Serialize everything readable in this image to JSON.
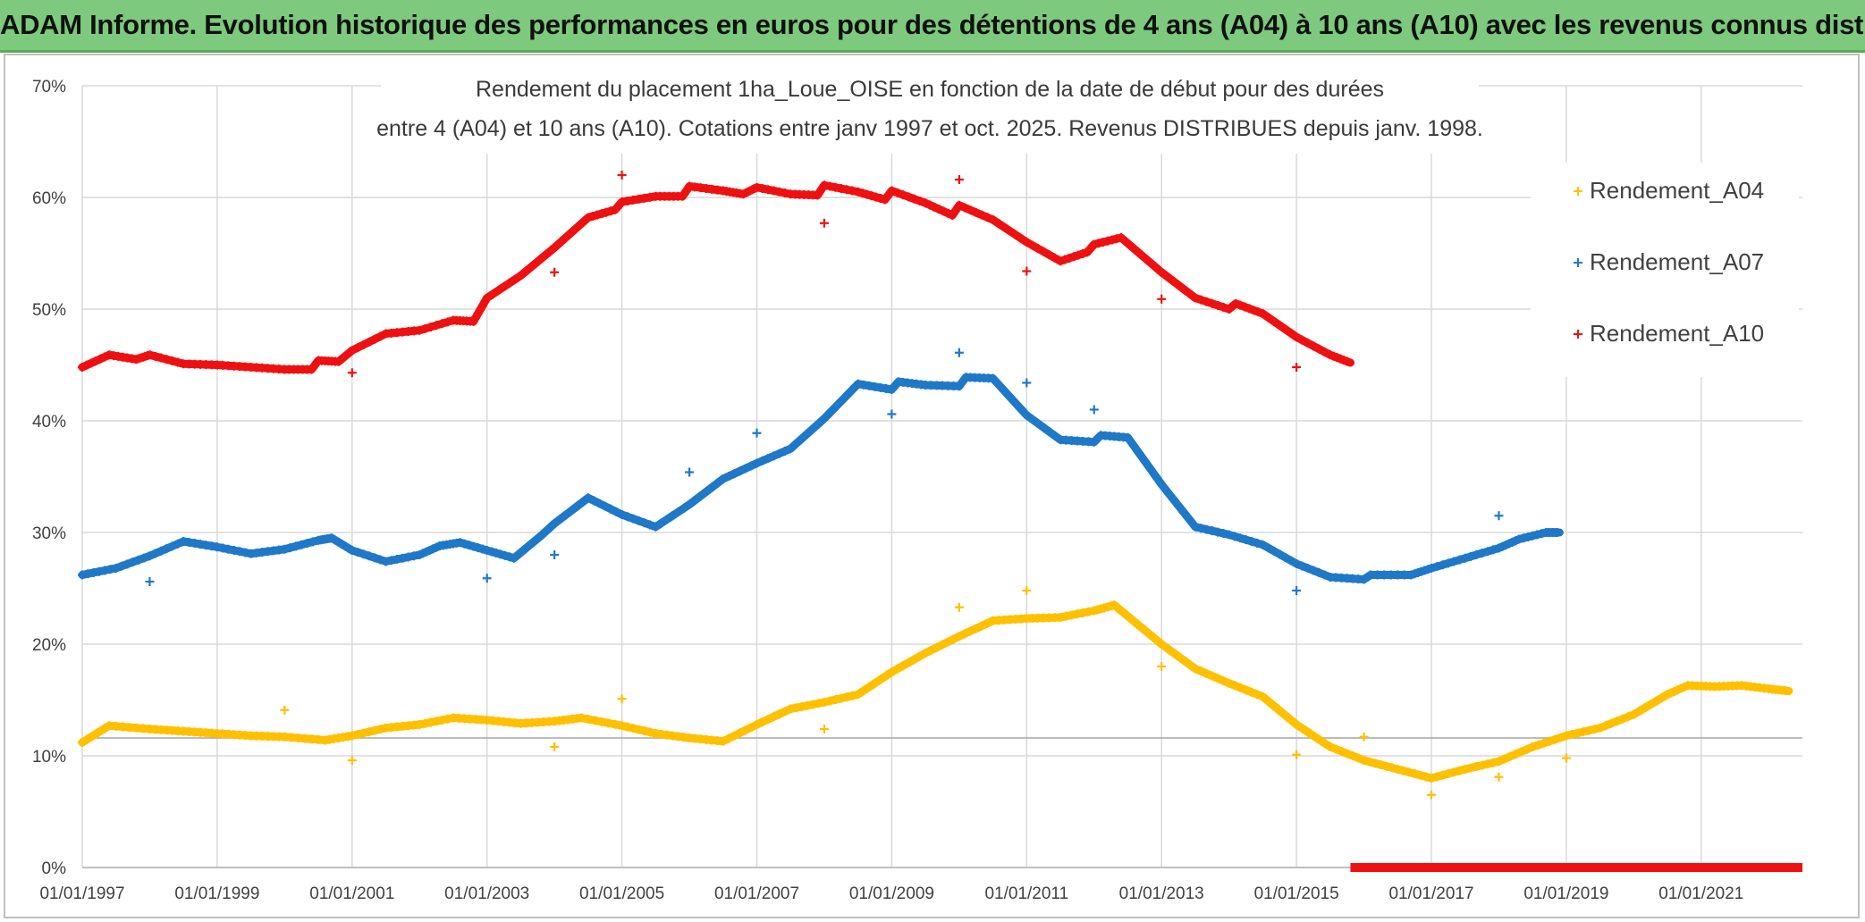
{
  "header": {
    "title": "ADAM Informe. Evolution historique des performances en euros pour des détentions de 4 ans (A04) à 10 ans (A10) avec les revenus connus distribués"
  },
  "colors": {
    "A04": "#ffc000",
    "A07": "#1f78c8",
    "A10": "#ee1111",
    "grid": "#d9d9d9",
    "banner": "#7dc97d"
  },
  "chart_data": {
    "type": "scatter",
    "title_line1": "Rendement du placement 1ha_Loue_OISE en fonction de la date de début pour des durées",
    "title_line2": "entre 4 (A04) et 10 ans (A10). Cotations entre janv 1997 et oct. 2025. Revenus DISTRIBUES depuis janv. 1998.",
    "xlabel": "",
    "ylabel": "",
    "x_range": [
      1997.0,
      2022.5
    ],
    "ylim": [
      0,
      0.7
    ],
    "y_ticks": [
      0,
      0.1,
      0.2,
      0.3,
      0.4,
      0.5,
      0.6,
      0.7
    ],
    "y_tick_labels": [
      "0%",
      "10%",
      "20%",
      "30%",
      "40%",
      "50%",
      "60%",
      "70%"
    ],
    "x_ticks": [
      1997,
      1999,
      2001,
      2003,
      2005,
      2007,
      2009,
      2011,
      2013,
      2015,
      2017,
      2019,
      2021
    ],
    "x_tick_labels": [
      "01/01/1997",
      "01/01/1999",
      "01/01/2001",
      "01/01/2003",
      "01/01/2005",
      "01/01/2007",
      "01/01/2009",
      "01/01/2011",
      "01/01/2013",
      "01/01/2015",
      "01/01/2017",
      "01/01/2019",
      "01/01/2021"
    ],
    "grid": true,
    "legend_position": "right",
    "series": [
      {
        "name": "Rendement_A04",
        "key": "A04",
        "points": [
          [
            1997.0,
            0.112
          ],
          [
            1997.4,
            0.127
          ],
          [
            1998.0,
            0.124
          ],
          [
            1998.5,
            0.122
          ],
          [
            1999.0,
            0.12
          ],
          [
            1999.5,
            0.118
          ],
          [
            2000.0,
            0.117
          ],
          [
            2000.6,
            0.114
          ],
          [
            2001.0,
            0.118
          ],
          [
            2001.5,
            0.125
          ],
          [
            2002.0,
            0.128
          ],
          [
            2002.5,
            0.134
          ],
          [
            2003.0,
            0.132
          ],
          [
            2003.5,
            0.129
          ],
          [
            2004.0,
            0.131
          ],
          [
            2004.4,
            0.134
          ],
          [
            2005.0,
            0.127
          ],
          [
            2005.5,
            0.12
          ],
          [
            2006.0,
            0.116
          ],
          [
            2006.5,
            0.113
          ],
          [
            2007.0,
            0.128
          ],
          [
            2007.5,
            0.142
          ],
          [
            2008.0,
            0.148
          ],
          [
            2008.5,
            0.155
          ],
          [
            2009.0,
            0.175
          ],
          [
            2009.5,
            0.192
          ],
          [
            2010.0,
            0.207
          ],
          [
            2010.5,
            0.221
          ],
          [
            2011.0,
            0.223
          ],
          [
            2011.5,
            0.224
          ],
          [
            2012.0,
            0.23
          ],
          [
            2012.3,
            0.235
          ],
          [
            2012.5,
            0.225
          ],
          [
            2013.0,
            0.2
          ],
          [
            2013.5,
            0.178
          ],
          [
            2014.0,
            0.165
          ],
          [
            2014.5,
            0.153
          ],
          [
            2015.0,
            0.128
          ],
          [
            2015.5,
            0.108
          ],
          [
            2016.0,
            0.096
          ],
          [
            2016.5,
            0.088
          ],
          [
            2017.0,
            0.08
          ],
          [
            2017.5,
            0.088
          ],
          [
            2018.0,
            0.095
          ],
          [
            2018.5,
            0.108
          ],
          [
            2019.0,
            0.118
          ],
          [
            2019.5,
            0.125
          ],
          [
            2020.0,
            0.137
          ],
          [
            2020.5,
            0.155
          ],
          [
            2020.8,
            0.163
          ],
          [
            2021.2,
            0.162
          ],
          [
            2021.6,
            0.163
          ],
          [
            2022.0,
            0.16
          ],
          [
            2022.3,
            0.158
          ]
        ],
        "outliers": [
          [
            2000.0,
            0.141
          ],
          [
            2001.0,
            0.096
          ],
          [
            2004.0,
            0.108
          ],
          [
            2005.0,
            0.151
          ],
          [
            2008.0,
            0.124
          ],
          [
            2010.0,
            0.233
          ],
          [
            2011.0,
            0.248
          ],
          [
            2013.0,
            0.18
          ],
          [
            2015.0,
            0.101
          ],
          [
            2016.0,
            0.117
          ],
          [
            2017.0,
            0.065
          ],
          [
            2018.0,
            0.081
          ],
          [
            2019.0,
            0.098
          ]
        ]
      },
      {
        "name": "Rendement_A07",
        "key": "A07",
        "points": [
          [
            1997.0,
            0.262
          ],
          [
            1997.5,
            0.268
          ],
          [
            1998.0,
            0.279
          ],
          [
            1998.5,
            0.292
          ],
          [
            1999.0,
            0.287
          ],
          [
            1999.5,
            0.281
          ],
          [
            2000.0,
            0.285
          ],
          [
            2000.5,
            0.293
          ],
          [
            2000.7,
            0.295
          ],
          [
            2001.0,
            0.284
          ],
          [
            2001.5,
            0.274
          ],
          [
            2002.0,
            0.28
          ],
          [
            2002.3,
            0.288
          ],
          [
            2002.6,
            0.291
          ],
          [
            2003.0,
            0.284
          ],
          [
            2003.4,
            0.277
          ],
          [
            2003.8,
            0.297
          ],
          [
            2004.0,
            0.308
          ],
          [
            2004.5,
            0.331
          ],
          [
            2005.0,
            0.316
          ],
          [
            2005.5,
            0.305
          ],
          [
            2006.0,
            0.325
          ],
          [
            2006.5,
            0.348
          ],
          [
            2007.0,
            0.362
          ],
          [
            2007.5,
            0.375
          ],
          [
            2008.0,
            0.402
          ],
          [
            2008.5,
            0.433
          ],
          [
            2009.0,
            0.428
          ],
          [
            2009.1,
            0.435
          ],
          [
            2009.5,
            0.432
          ],
          [
            2010.0,
            0.431
          ],
          [
            2010.1,
            0.439
          ],
          [
            2010.5,
            0.438
          ],
          [
            2011.0,
            0.405
          ],
          [
            2011.5,
            0.383
          ],
          [
            2012.0,
            0.381
          ],
          [
            2012.1,
            0.387
          ],
          [
            2012.5,
            0.385
          ],
          [
            2013.0,
            0.343
          ],
          [
            2013.5,
            0.305
          ],
          [
            2014.0,
            0.298
          ],
          [
            2014.5,
            0.289
          ],
          [
            2015.0,
            0.272
          ],
          [
            2015.5,
            0.26
          ],
          [
            2016.0,
            0.258
          ],
          [
            2016.1,
            0.262
          ],
          [
            2016.7,
            0.262
          ],
          [
            2017.0,
            0.268
          ],
          [
            2017.5,
            0.277
          ],
          [
            2018.0,
            0.286
          ],
          [
            2018.3,
            0.294
          ],
          [
            2018.7,
            0.3
          ],
          [
            2018.9,
            0.3
          ]
        ],
        "outliers": [
          [
            1998.0,
            0.256
          ],
          [
            2003.0,
            0.259
          ],
          [
            2004.0,
            0.28
          ],
          [
            2006.0,
            0.354
          ],
          [
            2007.0,
            0.389
          ],
          [
            2009.0,
            0.406
          ],
          [
            2010.0,
            0.461
          ],
          [
            2011.0,
            0.434
          ],
          [
            2012.0,
            0.41
          ],
          [
            2015.0,
            0.248
          ],
          [
            2018.0,
            0.315
          ]
        ]
      },
      {
        "name": "Rendement_A10",
        "key": "A10",
        "points": [
          [
            1997.0,
            0.448
          ],
          [
            1997.4,
            0.459
          ],
          [
            1997.8,
            0.455
          ],
          [
            1998.0,
            0.459
          ],
          [
            1998.5,
            0.451
          ],
          [
            1999.0,
            0.45
          ],
          [
            1999.5,
            0.448
          ],
          [
            2000.0,
            0.446
          ],
          [
            2000.4,
            0.446
          ],
          [
            2000.5,
            0.454
          ],
          [
            2000.8,
            0.453
          ],
          [
            2001.0,
            0.463
          ],
          [
            2001.5,
            0.478
          ],
          [
            2002.0,
            0.481
          ],
          [
            2002.5,
            0.49
          ],
          [
            2002.8,
            0.489
          ],
          [
            2003.0,
            0.51
          ],
          [
            2003.5,
            0.53
          ],
          [
            2004.0,
            0.555
          ],
          [
            2004.5,
            0.582
          ],
          [
            2004.9,
            0.589
          ],
          [
            2005.0,
            0.596
          ],
          [
            2005.5,
            0.601
          ],
          [
            2005.9,
            0.601
          ],
          [
            2006.0,
            0.61
          ],
          [
            2006.5,
            0.606
          ],
          [
            2006.8,
            0.603
          ],
          [
            2007.0,
            0.609
          ],
          [
            2007.5,
            0.603
          ],
          [
            2007.9,
            0.602
          ],
          [
            2008.0,
            0.611
          ],
          [
            2008.5,
            0.605
          ],
          [
            2008.9,
            0.598
          ],
          [
            2009.0,
            0.606
          ],
          [
            2009.5,
            0.595
          ],
          [
            2009.9,
            0.584
          ],
          [
            2010.0,
            0.593
          ],
          [
            2010.5,
            0.58
          ],
          [
            2011.0,
            0.56
          ],
          [
            2011.5,
            0.543
          ],
          [
            2011.9,
            0.551
          ],
          [
            2012.0,
            0.558
          ],
          [
            2012.4,
            0.564
          ],
          [
            2013.0,
            0.533
          ],
          [
            2013.5,
            0.51
          ],
          [
            2014.0,
            0.5
          ],
          [
            2014.1,
            0.505
          ],
          [
            2014.5,
            0.496
          ],
          [
            2015.0,
            0.475
          ],
          [
            2015.5,
            0.459
          ],
          [
            2015.8,
            0.452
          ]
        ],
        "outliers": [
          [
            2001.0,
            0.443
          ],
          [
            2004.0,
            0.533
          ],
          [
            2005.0,
            0.62
          ],
          [
            2008.0,
            0.577
          ],
          [
            2010.0,
            0.616
          ],
          [
            2011.0,
            0.534
          ],
          [
            2013.0,
            0.509
          ],
          [
            2015.0,
            0.448
          ]
        ],
        "zero_segment": [
          2015.8,
          2022.5
        ]
      }
    ]
  }
}
